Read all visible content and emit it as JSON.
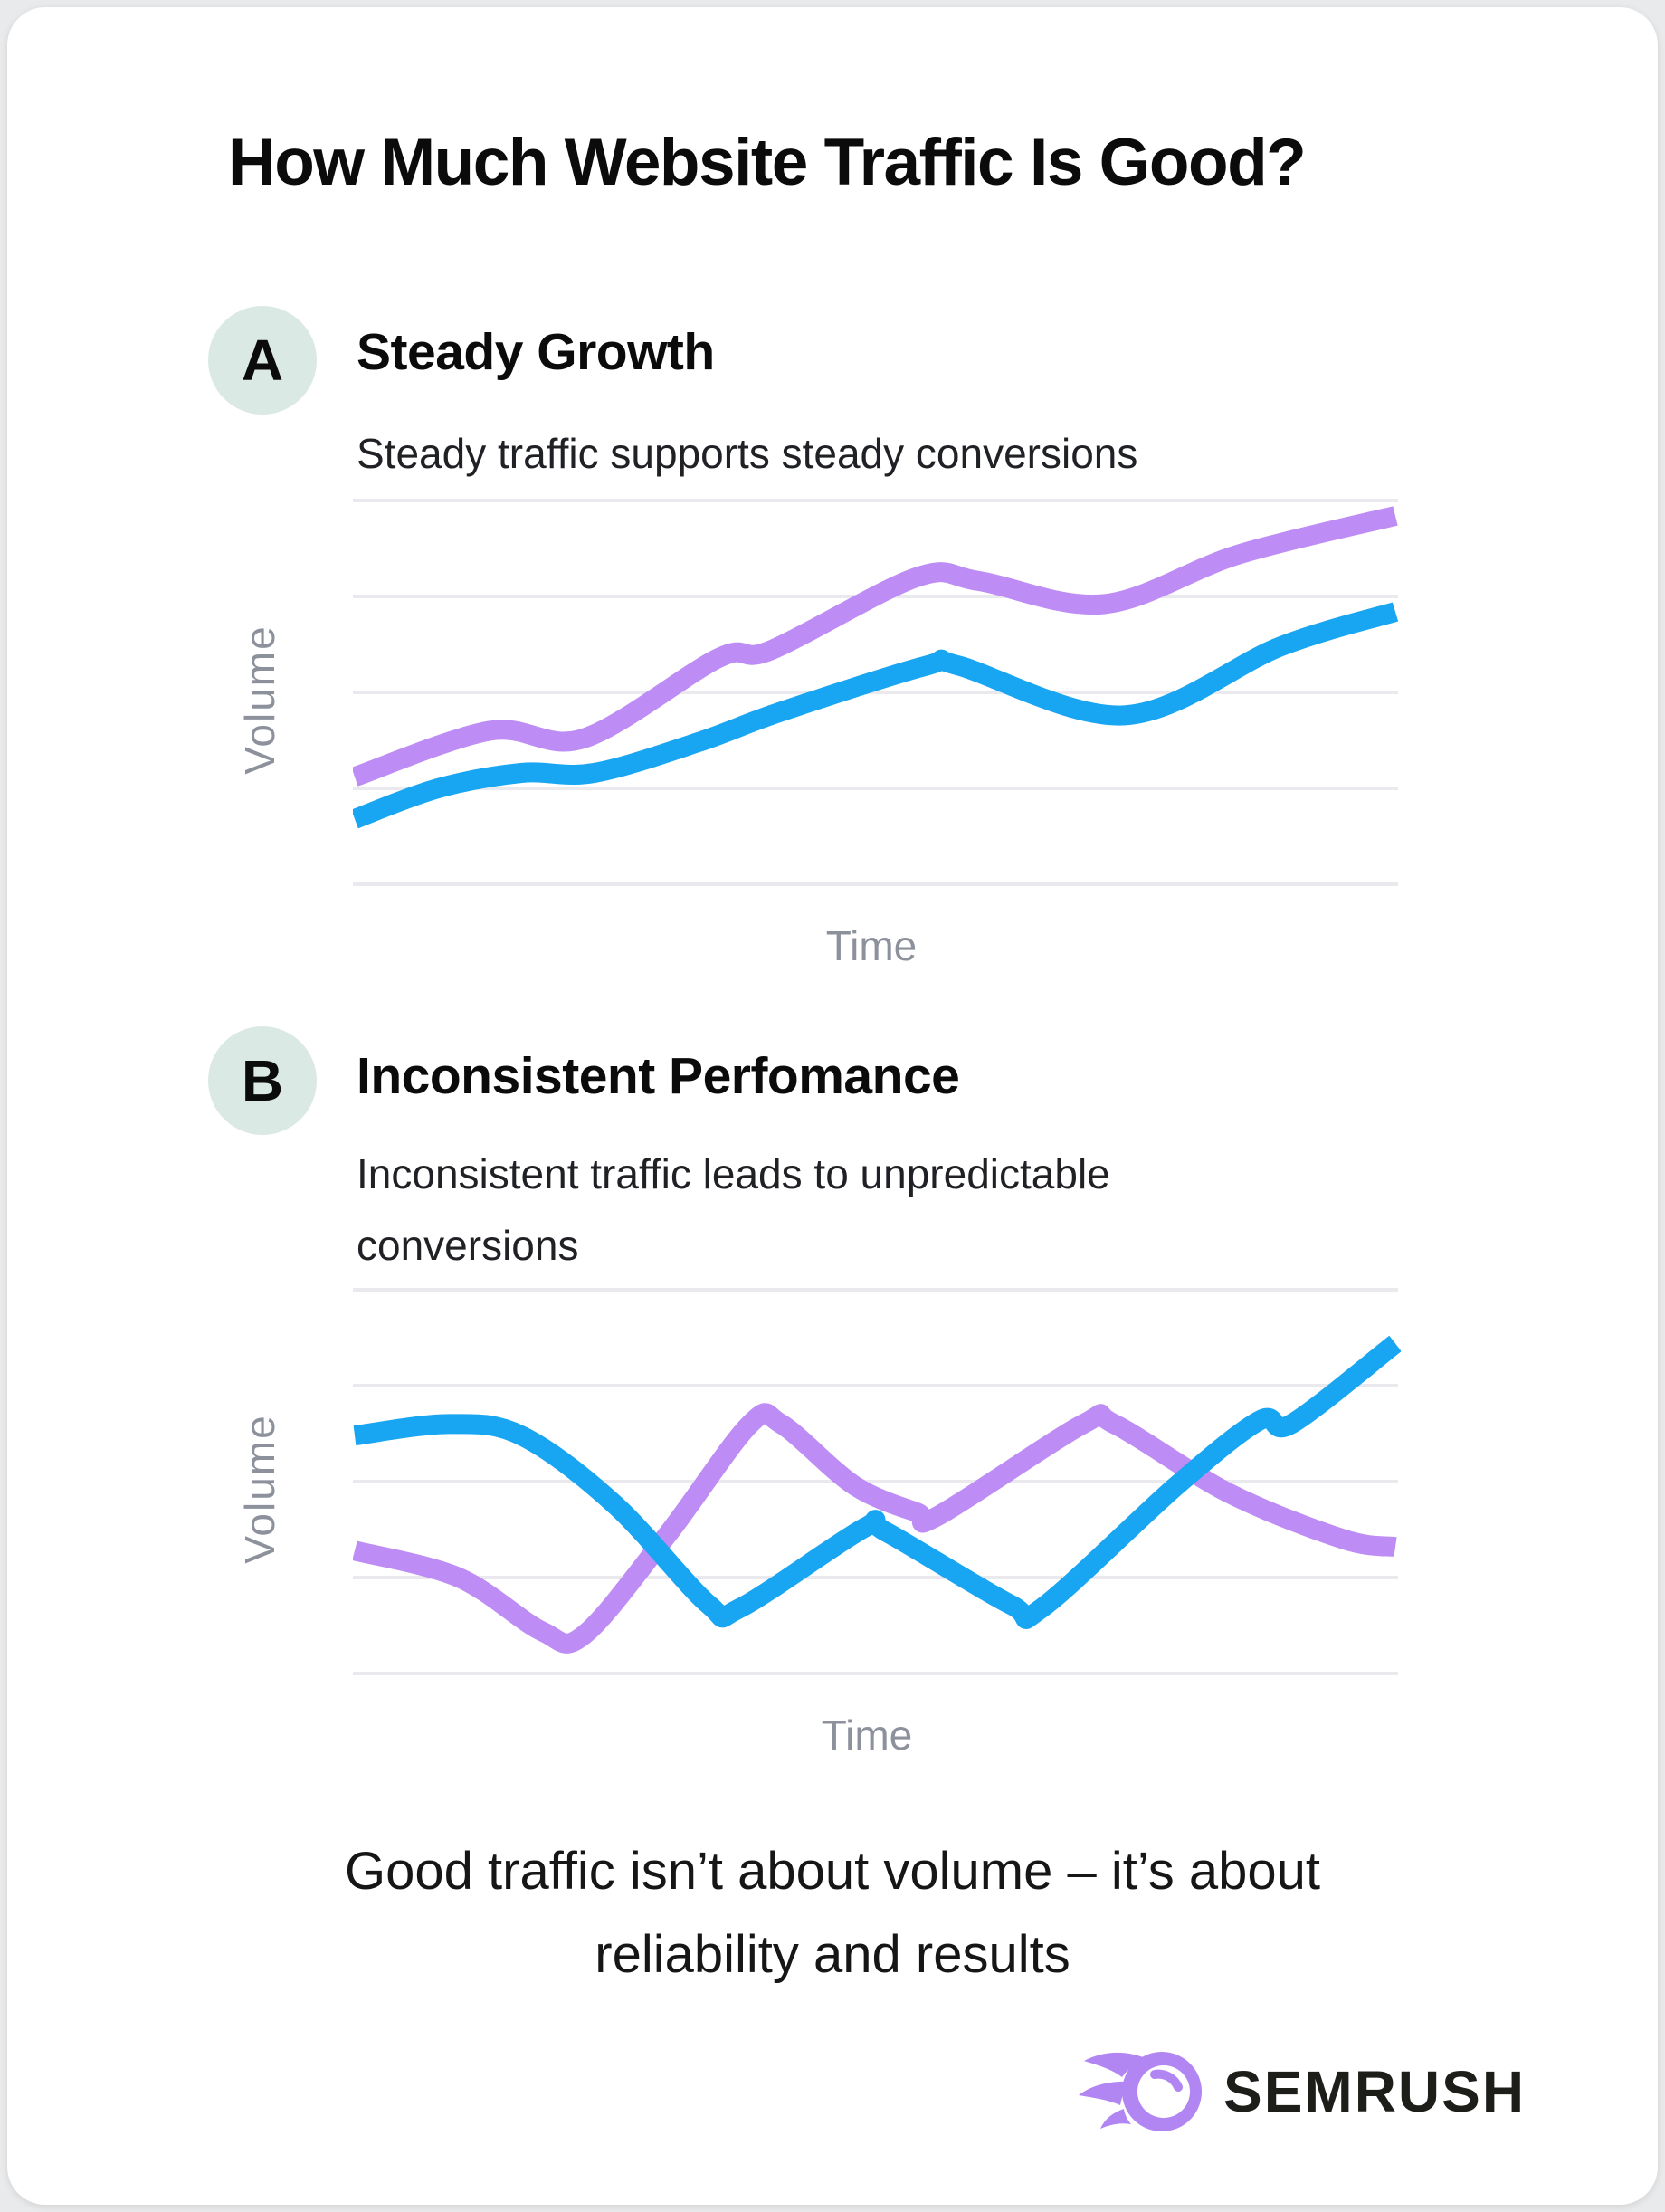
{
  "title": "How Much Website Traffic Is Good?",
  "sections": [
    {
      "badge": "A",
      "heading": "Steady Growth",
      "subtitle": "Steady traffic supports steady conversions"
    },
    {
      "badge": "B",
      "heading": "Inconsistent Perfomance",
      "subtitle": "Inconsistent traffic leads to unpredictable conversions"
    }
  ],
  "footer": {
    "lines": [
      "Good traffic isn’t about volume – it’s about",
      "reliability and results"
    ]
  },
  "brand": {
    "name": "SEMRUSH",
    "icon": "semrush-comet-icon"
  },
  "colors": {
    "blue_line": "#18a5f2",
    "purple_line": "#bd8cf4",
    "gridline": "#e9e9ee",
    "axis_label": "#8c919c",
    "badge_background": "#dbe9e4",
    "title_text": "#0b0b0b",
    "card_background": "#ffffff",
    "page_background": "#e9eaeb",
    "logo_purple": "#b286f2",
    "logo_text": "#1d1e19"
  },
  "chart_data": [
    {
      "type": "line",
      "panel": "A",
      "title": "Steady Growth",
      "xlabel": "Time",
      "ylabel": "Volume",
      "x_range": [
        0,
        100
      ],
      "y_range": [
        0,
        100
      ],
      "gridlines": 5,
      "legend": false,
      "series": [
        {
          "name": "purple-line",
          "color": "#bd8cf4",
          "points": [
            [
              0,
              28
            ],
            [
              13,
              40
            ],
            [
              22,
              38
            ],
            [
              35,
              59
            ],
            [
              40,
              61
            ],
            [
              54,
              80
            ],
            [
              60,
              79
            ],
            [
              72,
              73
            ],
            [
              85,
              86
            ],
            [
              100,
              96
            ]
          ]
        },
        {
          "name": "blue-line",
          "color": "#18a5f2",
          "points": [
            [
              0,
              17
            ],
            [
              8,
              25
            ],
            [
              16,
              29
            ],
            [
              23,
              29
            ],
            [
              33,
              37
            ],
            [
              41,
              45
            ],
            [
              55,
              57
            ],
            [
              58,
              57
            ],
            [
              74,
              44
            ],
            [
              89,
              62
            ],
            [
              100,
              71
            ]
          ]
        }
      ]
    },
    {
      "type": "line",
      "panel": "B",
      "title": "Inconsistent Perfomance",
      "xlabel": "Time",
      "ylabel": "Volume",
      "x_range": [
        0,
        100
      ],
      "y_range": [
        0,
        100
      ],
      "gridlines": 5,
      "legend": false,
      "series": [
        {
          "name": "purple-line",
          "color": "#bd8cf4",
          "points": [
            [
              0,
              32
            ],
            [
              10,
              25
            ],
            [
              18,
              11
            ],
            [
              22,
              10
            ],
            [
              30,
              36
            ],
            [
              38,
              65
            ],
            [
              41,
              65
            ],
            [
              48,
              49
            ],
            [
              54,
              42
            ],
            [
              56,
              41
            ],
            [
              70,
              65
            ],
            [
              73,
              65
            ],
            [
              84,
              47
            ],
            [
              95,
              35
            ],
            [
              100,
              33
            ]
          ]
        },
        {
          "name": "blue-line",
          "color": "#18a5f2",
          "points": [
            [
              0,
              62
            ],
            [
              9,
              65
            ],
            [
              16,
              62
            ],
            [
              25,
              44
            ],
            [
              34,
              18
            ],
            [
              37,
              17
            ],
            [
              49,
              38
            ],
            [
              51,
              37
            ],
            [
              63,
              18
            ],
            [
              66,
              17
            ],
            [
              79,
              49
            ],
            [
              87,
              66
            ],
            [
              90,
              65
            ],
            [
              100,
              86
            ]
          ]
        }
      ]
    }
  ]
}
